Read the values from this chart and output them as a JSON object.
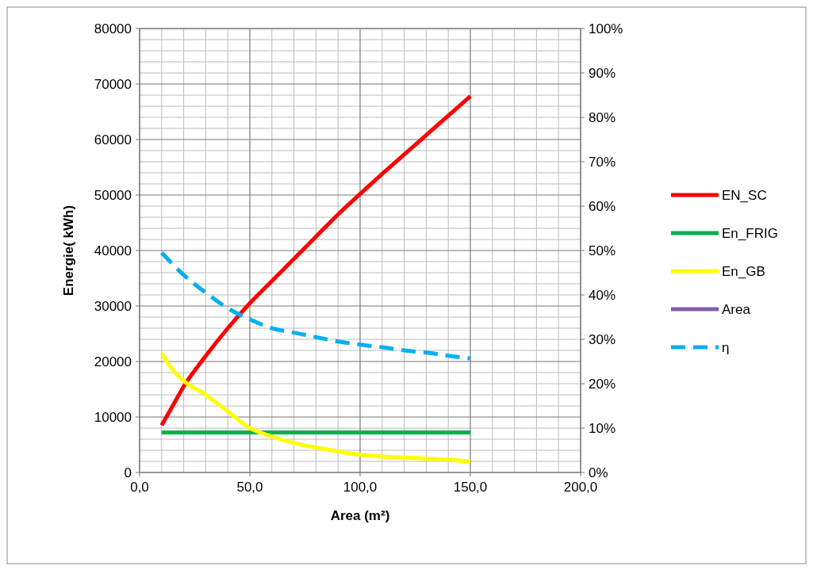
{
  "chart_data": {
    "type": "line",
    "xlabel": "Area (m²)",
    "ylabel": "Energie( kWh)",
    "xlim": [
      0,
      200
    ],
    "xticks": [
      {
        "value": 0,
        "label": "0,0"
      },
      {
        "value": 50,
        "label": "50,0"
      },
      {
        "value": 100,
        "label": "100,0"
      },
      {
        "value": 150,
        "label": "150,0"
      },
      {
        "value": 200,
        "label": "200,0"
      }
    ],
    "ylim": [
      0,
      80000
    ],
    "yticks": [
      0,
      10000,
      20000,
      30000,
      40000,
      50000,
      60000,
      70000,
      80000
    ],
    "y2lim": [
      0,
      100
    ],
    "y2ticks": [
      {
        "value": 0,
        "label": "0%"
      },
      {
        "value": 10,
        "label": "10%"
      },
      {
        "value": 20,
        "label": "20%"
      },
      {
        "value": 30,
        "label": "30%"
      },
      {
        "value": 40,
        "label": "40%"
      },
      {
        "value": 50,
        "label": "50%"
      },
      {
        "value": 60,
        "label": "60%"
      },
      {
        "value": 70,
        "label": "70%"
      },
      {
        "value": 80,
        "label": "80%"
      },
      {
        "value": 90,
        "label": "90%"
      },
      {
        "value": 100,
        "label": "100%"
      }
    ],
    "grid": true,
    "legend": "right",
    "series": [
      {
        "name": "EN_SC",
        "color": "#ff0000",
        "x": [
          10,
          15,
          20,
          30,
          40,
          50,
          60,
          70,
          80,
          90,
          100,
          110,
          120,
          130,
          140,
          150
        ],
        "values": [
          8500,
          12000,
          15500,
          21000,
          26000,
          30500,
          34500,
          38500,
          42500,
          46500,
          50200,
          53800,
          57300,
          60800,
          64300,
          67800
        ]
      },
      {
        "name": "En_FRIG",
        "color": "#00b050",
        "x": [
          10,
          150
        ],
        "values": [
          7200,
          7200
        ]
      },
      {
        "name": "En_GB",
        "color": "#ffff00",
        "x": [
          10,
          15,
          20,
          30,
          40,
          50,
          60,
          70,
          80,
          90,
          100,
          110,
          120,
          130,
          140,
          150
        ],
        "values": [
          21500,
          18500,
          16500,
          14000,
          11000,
          8000,
          6500,
          5300,
          4500,
          3800,
          3200,
          2900,
          2700,
          2500,
          2300,
          2000
        ]
      },
      {
        "name": "Area",
        "color": "#7f5fa8"
      },
      {
        "name": "η",
        "color": "#00b0f0",
        "axis": "y2",
        "line_style": "dashed",
        "x": [
          10,
          20,
          30,
          40,
          50,
          60,
          70,
          80,
          90,
          100,
          110,
          120,
          130,
          140,
          150
        ],
        "values": [
          49.5,
          44.5,
          40.5,
          37,
          34.5,
          32.5,
          31.5,
          30.5,
          29.5,
          28.8,
          28.2,
          27.5,
          27,
          26.3,
          25.7
        ]
      }
    ]
  }
}
